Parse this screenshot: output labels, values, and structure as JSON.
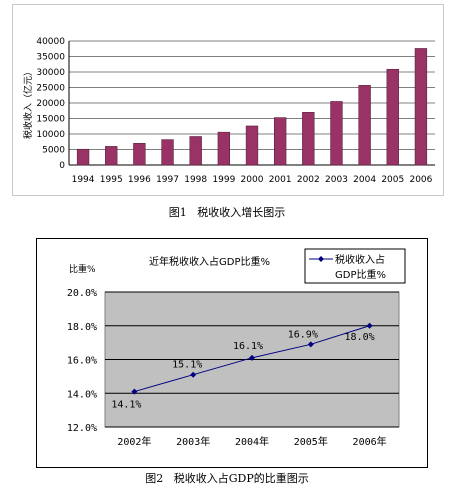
{
  "chart_data": [
    {
      "type": "bar",
      "categories": [
        "1994",
        "1995",
        "1996",
        "1997",
        "1998",
        "1999",
        "2000",
        "2001",
        "2002",
        "2003",
        "2004",
        "2005",
        "2006"
      ],
      "values": [
        5100,
        6000,
        7000,
        8200,
        9200,
        10600,
        12600,
        15300,
        17000,
        20500,
        25700,
        30900,
        37600
      ],
      "ylabel": "税收收入（亿元）",
      "yticks": [
        0,
        5000,
        10000,
        15000,
        20000,
        25000,
        30000,
        35000,
        40000
      ],
      "ylim": [
        0,
        40000
      ],
      "bar_color": "#993366",
      "grid": true
    },
    {
      "type": "line",
      "title": "近年税收收入占GDP比重%",
      "ylabel": "比重%",
      "categories": [
        "2002年",
        "2003年",
        "2004年",
        "2005年",
        "2006年"
      ],
      "values": [
        14.1,
        15.1,
        16.1,
        16.9,
        18.0
      ],
      "data_labels": [
        "14.1%",
        "15.1%",
        "16.1%",
        "16.9%",
        "18.0%"
      ],
      "yticks": [
        "12.0%",
        "14.0%",
        "16.0%",
        "18.0%",
        "20.0%"
      ],
      "ylim": [
        12,
        20
      ],
      "legend": [
        "税收收入占",
        "GDP比重%"
      ],
      "legend_position": "top-right",
      "line_color": "#000080",
      "plot_background": "#c0c0c0",
      "grid": true
    }
  ],
  "captions": {
    "fig1": "图1   税收收入增长图示",
    "fig2": "图2   税收收入占GDP的比重图示"
  }
}
